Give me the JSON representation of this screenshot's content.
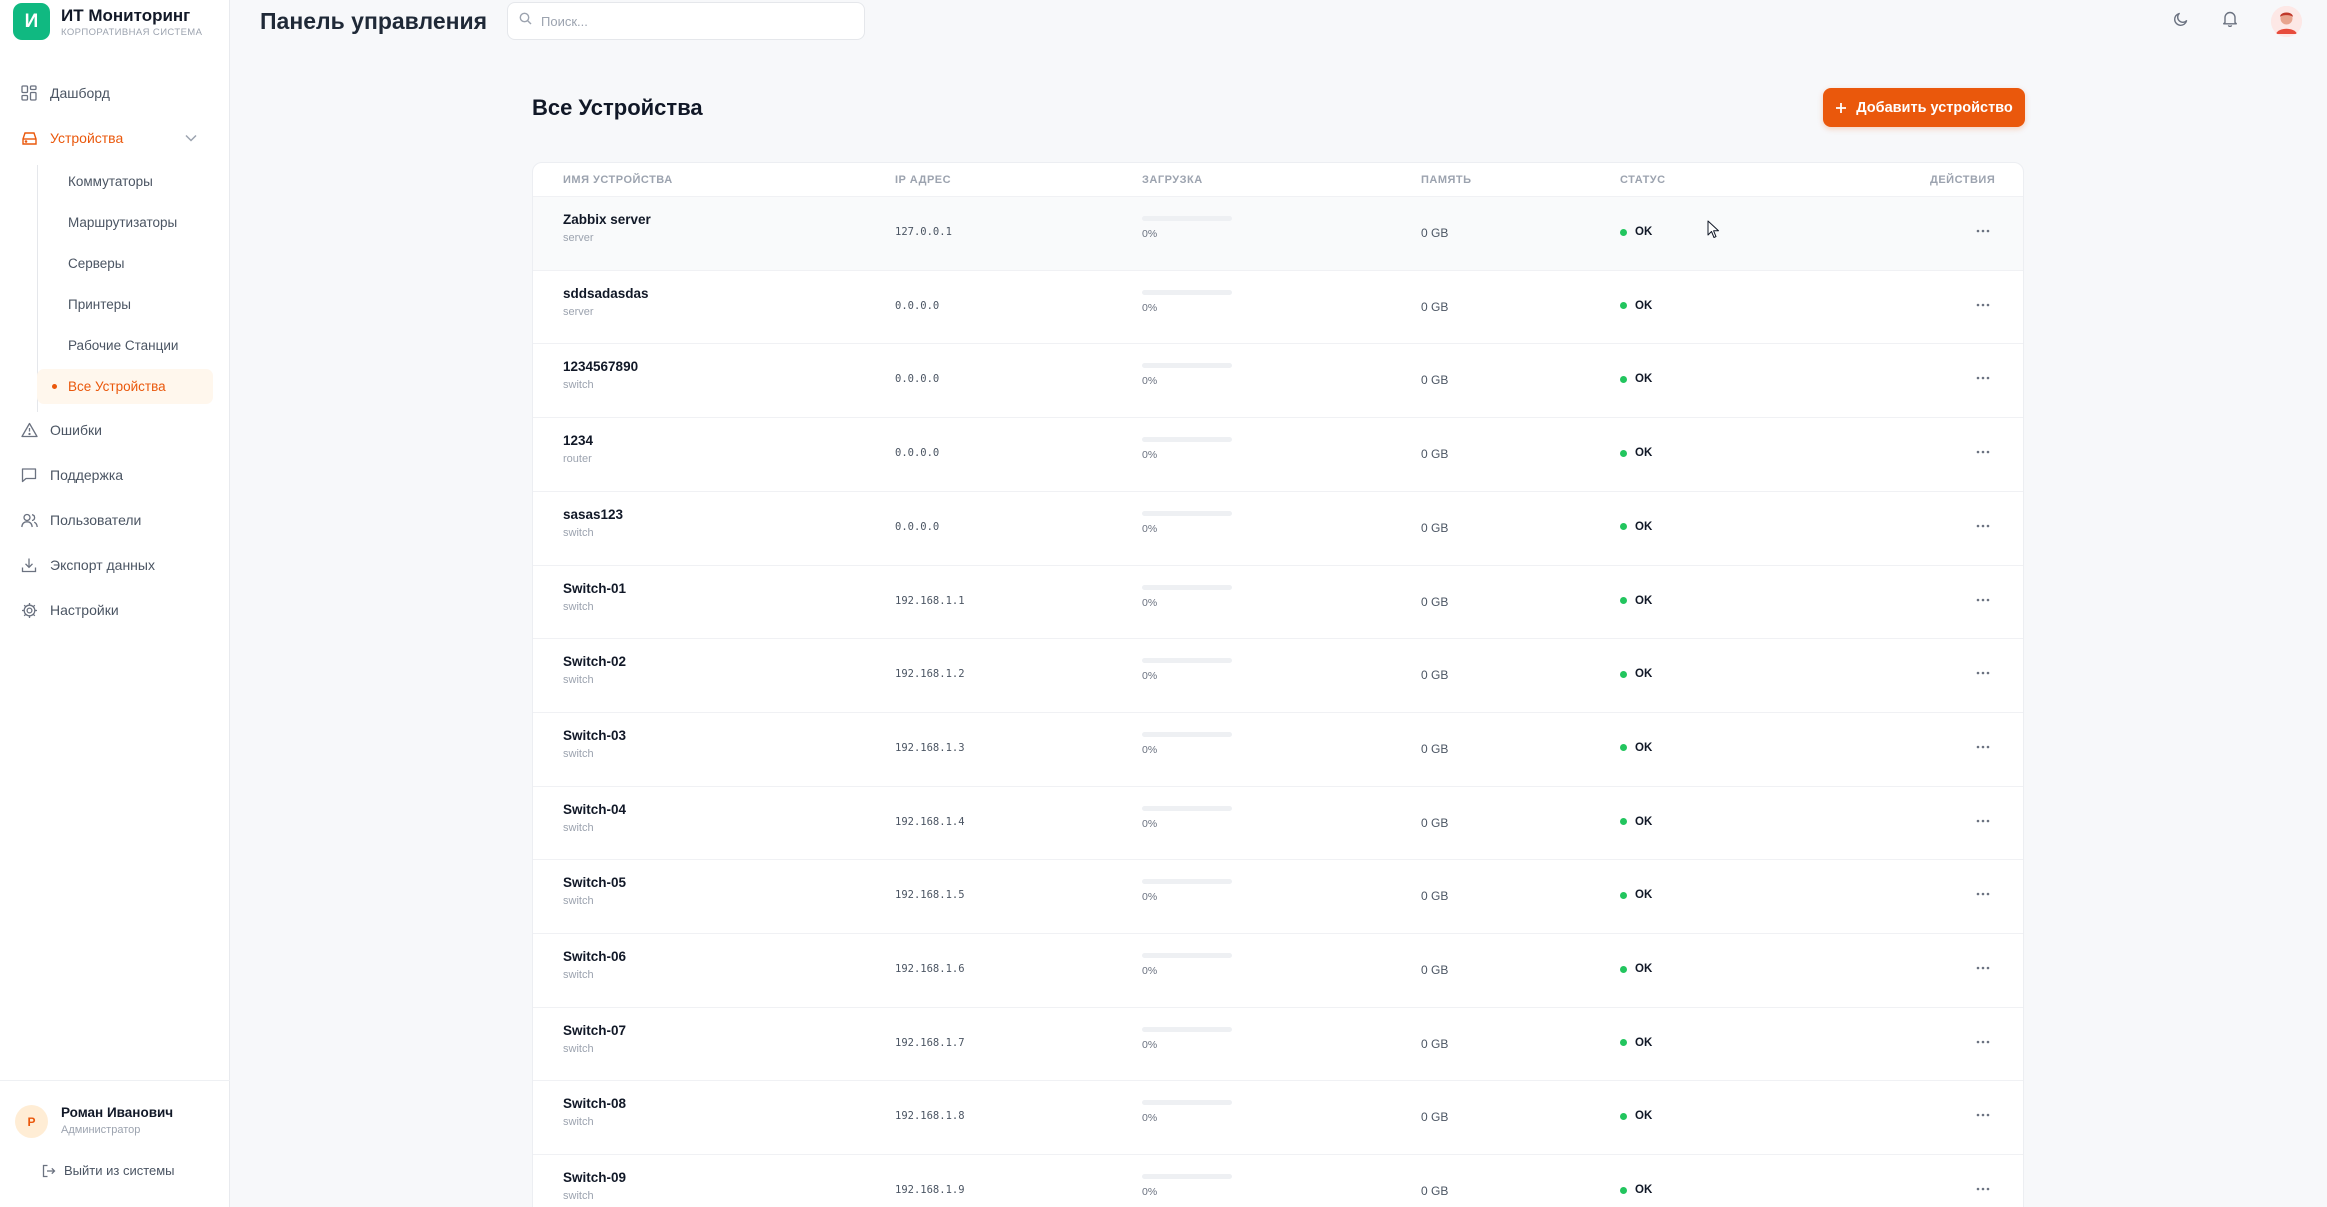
{
  "brand": {
    "logo_letter": "И",
    "title": "ИТ Мониторинг",
    "subtitle": "КОРПОРАТИВНАЯ СИСТЕМА",
    "color": "#10b981"
  },
  "accent_color": "#ea580c",
  "sidebar": {
    "items": [
      {
        "label": "Дашборд",
        "icon": "grid-icon"
      },
      {
        "label": "Устройства",
        "icon": "server-icon",
        "active": true,
        "expanded": true
      },
      {
        "label": "Ошибки",
        "icon": "warning-icon"
      },
      {
        "label": "Поддержка",
        "icon": "message-icon"
      },
      {
        "label": "Пользователи",
        "icon": "users-icon"
      },
      {
        "label": "Экспорт данных",
        "icon": "download-icon"
      },
      {
        "label": "Настройки",
        "icon": "gear-icon"
      }
    ],
    "sub_items": [
      {
        "label": "Коммутаторы"
      },
      {
        "label": "Маршрутизаторы"
      },
      {
        "label": "Серверы"
      },
      {
        "label": "Принтеры"
      },
      {
        "label": "Рабочие Станции"
      },
      {
        "label": "Все Устройства",
        "active": true
      }
    ],
    "user": {
      "initial": "Р",
      "name": "Роман Иванович",
      "role": "Администратор"
    },
    "logout_label": "Выйти из системы"
  },
  "header": {
    "title": "Панель управления",
    "search_placeholder": "Поиск...",
    "icons": [
      "moon-icon",
      "bell-icon",
      "user-avatar"
    ]
  },
  "main": {
    "title": "Все Устройства",
    "add_button": "Добавить устройство",
    "columns": [
      "ИМЯ УСТРОЙСТВА",
      "IP АДРЕС",
      "ЗАГРУЗКА",
      "ПАМЯТЬ",
      "СТАТУС",
      "ДЕЙСТВИЯ"
    ],
    "devices": [
      {
        "name": "Zabbix server",
        "type": "server",
        "ip": "127.0.0.1",
        "load": "0%",
        "load_pct": 0,
        "memory": "0 GB",
        "status": "OK"
      },
      {
        "name": "sddsadasdas",
        "type": "server",
        "ip": "0.0.0.0",
        "load": "0%",
        "load_pct": 0,
        "memory": "0 GB",
        "status": "OK"
      },
      {
        "name": "1234567890",
        "type": "switch",
        "ip": "0.0.0.0",
        "load": "0%",
        "load_pct": 0,
        "memory": "0 GB",
        "status": "OK"
      },
      {
        "name": "1234",
        "type": "router",
        "ip": "0.0.0.0",
        "load": "0%",
        "load_pct": 0,
        "memory": "0 GB",
        "status": "OK"
      },
      {
        "name": "sasas123",
        "type": "switch",
        "ip": "0.0.0.0",
        "load": "0%",
        "load_pct": 0,
        "memory": "0 GB",
        "status": "OK"
      },
      {
        "name": "Switch-01",
        "type": "switch",
        "ip": "192.168.1.1",
        "load": "0%",
        "load_pct": 0,
        "memory": "0 GB",
        "status": "OK"
      },
      {
        "name": "Switch-02",
        "type": "switch",
        "ip": "192.168.1.2",
        "load": "0%",
        "load_pct": 0,
        "memory": "0 GB",
        "status": "OK"
      },
      {
        "name": "Switch-03",
        "type": "switch",
        "ip": "192.168.1.3",
        "load": "0%",
        "load_pct": 0,
        "memory": "0 GB",
        "status": "OK"
      },
      {
        "name": "Switch-04",
        "type": "switch",
        "ip": "192.168.1.4",
        "load": "0%",
        "load_pct": 0,
        "memory": "0 GB",
        "status": "OK"
      },
      {
        "name": "Switch-05",
        "type": "switch",
        "ip": "192.168.1.5",
        "load": "0%",
        "load_pct": 0,
        "memory": "0 GB",
        "status": "OK"
      },
      {
        "name": "Switch-06",
        "type": "switch",
        "ip": "192.168.1.6",
        "load": "0%",
        "load_pct": 0,
        "memory": "0 GB",
        "status": "OK"
      },
      {
        "name": "Switch-07",
        "type": "switch",
        "ip": "192.168.1.7",
        "load": "0%",
        "load_pct": 0,
        "memory": "0 GB",
        "status": "OK"
      },
      {
        "name": "Switch-08",
        "type": "switch",
        "ip": "192.168.1.8",
        "load": "0%",
        "load_pct": 0,
        "memory": "0 GB",
        "status": "OK"
      },
      {
        "name": "Switch-09",
        "type": "switch",
        "ip": "192.168.1.9",
        "load": "0%",
        "load_pct": 0,
        "memory": "0 GB",
        "status": "OK"
      }
    ]
  }
}
